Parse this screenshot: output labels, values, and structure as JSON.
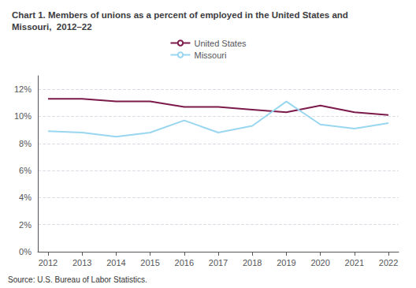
{
  "chart_data": {
    "type": "line",
    "title": "Chart 1. Members of unions as a percent of employed in the United States and\nMissouri,  2012–22",
    "annotations": [
      "Source: U.S. Bureau of Labor Statistics."
    ],
    "x": [
      2012,
      2013,
      2014,
      2015,
      2016,
      2017,
      2018,
      2019,
      2020,
      2021,
      2022
    ],
    "series": [
      {
        "name": "United States",
        "color": "#7b1a4b",
        "values": [
          11.3,
          11.3,
          11.1,
          11.1,
          10.7,
          10.7,
          10.5,
          10.3,
          10.8,
          10.3,
          10.1
        ]
      },
      {
        "name": "Missouri",
        "color": "#99d6f0",
        "values": [
          8.9,
          8.8,
          8.5,
          8.8,
          9.7,
          8.8,
          9.3,
          11.1,
          9.4,
          9.1,
          9.5
        ]
      }
    ],
    "xlim": [
      2011.7,
      2022.3
    ],
    "xticks": [
      2012,
      2013,
      2014,
      2015,
      2016,
      2017,
      2018,
      2019,
      2020,
      2021,
      2022
    ],
    "ylim": [
      0,
      13
    ],
    "yticks": [
      {
        "value": 0,
        "label": "0%"
      },
      {
        "value": 2,
        "label": "2%"
      },
      {
        "value": 4,
        "label": "4%"
      },
      {
        "value": 6,
        "label": "6%"
      },
      {
        "value": 8,
        "label": "8%"
      },
      {
        "value": 10,
        "label": "10%"
      },
      {
        "value": 12,
        "label": "12%"
      }
    ],
    "grid": true,
    "legend": "top"
  }
}
